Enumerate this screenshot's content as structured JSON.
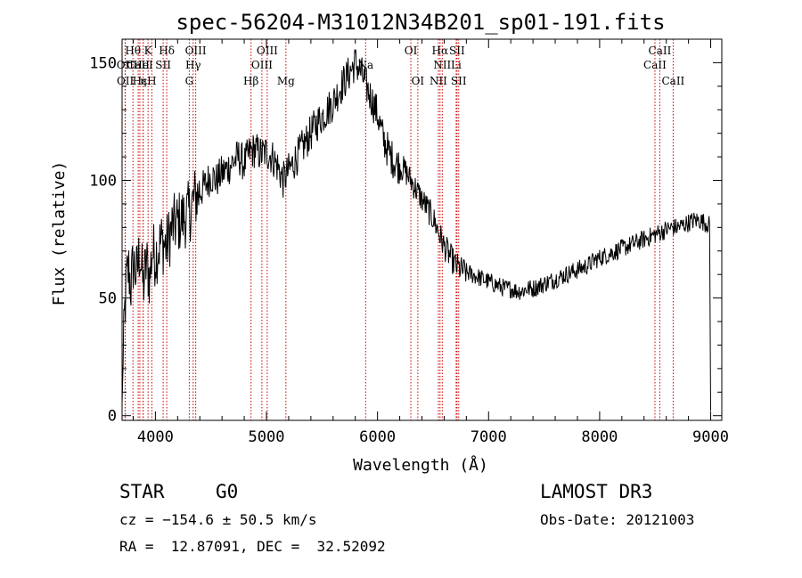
{
  "chart_data": {
    "type": "line",
    "title": "spec-56204-M31012N34B201_sp01-191.fits",
    "xlabel": "Wavelength (Å)",
    "ylabel": "Flux (relative)",
    "xlim": [
      3700,
      9100
    ],
    "ylim": [
      -2,
      160
    ],
    "xticks": [
      4000,
      5000,
      6000,
      7000,
      8000,
      9000
    ],
    "yticks": [
      0,
      50,
      100,
      150
    ],
    "series": [
      {
        "name": "spectrum",
        "x": [
          3700,
          3720,
          3740,
          3760,
          3780,
          3800,
          3830,
          3860,
          3890,
          3920,
          3950,
          3970,
          4000,
          4050,
          4100,
          4150,
          4200,
          4250,
          4300,
          4350,
          4400,
          4450,
          4500,
          4550,
          4600,
          4650,
          4700,
          4750,
          4800,
          4850,
          4900,
          4950,
          5000,
          5050,
          5100,
          5150,
          5200,
          5250,
          5300,
          5350,
          5400,
          5450,
          5500,
          5550,
          5600,
          5650,
          5700,
          5750,
          5800,
          5850,
          5900,
          5950,
          6000,
          6050,
          6100,
          6150,
          6200,
          6250,
          6300,
          6350,
          6400,
          6450,
          6500,
          6550,
          6600,
          6650,
          6700,
          6750,
          6800,
          6850,
          6900,
          6950,
          7000,
          7050,
          7100,
          7150,
          7200,
          7250,
          7300,
          7350,
          7400,
          7450,
          7500,
          7550,
          7600,
          7650,
          7700,
          7750,
          7800,
          7850,
          7900,
          7950,
          8000,
          8050,
          8100,
          8150,
          8200,
          8250,
          8300,
          8350,
          8400,
          8450,
          8500,
          8550,
          8600,
          8650,
          8700,
          8750,
          8800,
          8850,
          8900,
          8950,
          8990,
          9000
        ],
        "values": [
          5,
          40,
          58,
          62,
          55,
          65,
          60,
          70,
          55,
          65,
          58,
          70,
          68,
          74,
          72,
          80,
          82,
          84,
          86,
          92,
          95,
          98,
          102,
          100,
          103,
          105,
          108,
          110,
          107,
          112,
          113,
          111,
          112,
          110,
          106,
          100,
          104,
          108,
          112,
          116,
          120,
          124,
          127,
          130,
          133,
          138,
          142,
          146,
          150,
          146,
          140,
          134,
          128,
          118,
          112,
          108,
          106,
          104,
          100,
          96,
          92,
          88,
          84,
          78,
          72,
          68,
          64,
          62,
          61,
          60,
          59,
          58,
          57,
          56,
          55,
          54,
          54,
          53,
          53,
          54,
          54,
          55,
          56,
          57,
          58,
          59,
          60,
          61,
          62,
          63,
          64,
          66,
          67,
          68,
          69,
          70,
          71,
          72,
          73,
          74,
          75,
          76,
          77,
          78,
          79,
          80,
          80,
          81,
          82,
          83,
          83,
          82,
          81,
          2
        ]
      }
    ],
    "line_markers": [
      {
        "label": "Hθ",
        "x": 3798,
        "row": 1
      },
      {
        "label": "OII",
        "x": 3727,
        "row": 2
      },
      {
        "label": "OII",
        "x": 3729,
        "row": 3
      },
      {
        "label": "K",
        "x": 3934,
        "row": 1
      },
      {
        "label": "CaII",
        "x": 3845,
        "row": 2
      },
      {
        "label": "HeI",
        "x": 3889,
        "row": 2
      },
      {
        "label": "Hε",
        "x": 3860,
        "row": 3
      },
      {
        "label": "η",
        "x": 3890,
        "row": 3
      },
      {
        "label": "H",
        "x": 3968,
        "row": 3
      },
      {
        "label": "SII",
        "x": 4070,
        "row": 2
      },
      {
        "label": "Hδ",
        "x": 4102,
        "row": 1
      },
      {
        "label": "OIII",
        "x": 4363,
        "row": 1
      },
      {
        "label": "Hγ",
        "x": 4340,
        "row": 2
      },
      {
        "label": "G",
        "x": 4305,
        "row": 3
      },
      {
        "label": "Hβ",
        "x": 4861,
        "row": 3
      },
      {
        "label": "OIII",
        "x": 5007,
        "row": 1
      },
      {
        "label": "OIII",
        "x": 4959,
        "row": 2
      },
      {
        "label": "Mg",
        "x": 5175,
        "row": 3
      },
      {
        "label": "Na",
        "x": 5893,
        "row": 2
      },
      {
        "label": "OI",
        "x": 6300,
        "row": 1
      },
      {
        "label": "OI",
        "x": 6363,
        "row": 3
      },
      {
        "label": "Hα",
        "x": 6563,
        "row": 1
      },
      {
        "label": "NII",
        "x": 6583,
        "row": 2
      },
      {
        "label": "NII",
        "x": 6548,
        "row": 3
      },
      {
        "label": "SII",
        "x": 6716,
        "row": 1
      },
      {
        "label": "Li",
        "x": 6708,
        "row": 2
      },
      {
        "label": "SII",
        "x": 6731,
        "row": 3
      },
      {
        "label": "CaII",
        "x": 8542,
        "row": 1
      },
      {
        "label": "CaII",
        "x": 8498,
        "row": 2
      },
      {
        "label": "CaII",
        "x": 8662,
        "row": 3
      }
    ]
  },
  "info": {
    "class": "STAR",
    "subclass": "G0",
    "survey": "LAMOST DR3",
    "cz": "cz = −154.6 ± 50.5 km/s",
    "obs_date": "Obs-Date: 20121003",
    "coords": "RA =  12.87091, DEC =  32.52092"
  },
  "colors": {
    "line": "#000000",
    "marker": "#cc0000"
  }
}
